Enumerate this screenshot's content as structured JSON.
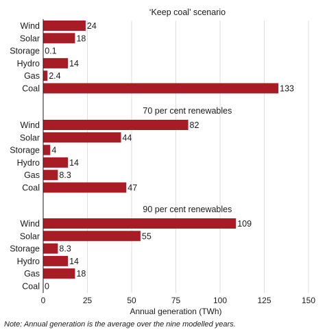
{
  "chart_data": {
    "type": "bar",
    "orientation": "horizontal",
    "bar_color": "#a81c26",
    "grid": true,
    "xlabel": "Annual generation (TWh)",
    "xlim": [
      0,
      160
    ],
    "xticks": [
      0,
      25,
      50,
      75,
      100,
      125,
      150
    ],
    "categories": [
      "Wind",
      "Solar",
      "Storage",
      "Hydro",
      "Gas",
      "Coal"
    ],
    "panels": [
      {
        "title": "‘Keep coal’ scenario",
        "values": [
          24,
          18,
          0.1,
          14,
          2.4,
          133
        ],
        "labels": [
          "24",
          "18",
          "0.1",
          "14",
          "2.4",
          "133"
        ]
      },
      {
        "title": "70 per cent renewables",
        "values": [
          82,
          44,
          4,
          14,
          8.3,
          47
        ],
        "labels": [
          "82",
          "44",
          "4",
          "14",
          "8.3",
          "47"
        ]
      },
      {
        "title": "90 per cent renewables",
        "values": [
          109,
          55,
          8.3,
          14,
          18,
          0
        ],
        "labels": [
          "109",
          "55",
          "8.3",
          "14",
          "18",
          "0"
        ]
      }
    ]
  },
  "note": "Note: Annual generation is the average over the nine modelled years."
}
